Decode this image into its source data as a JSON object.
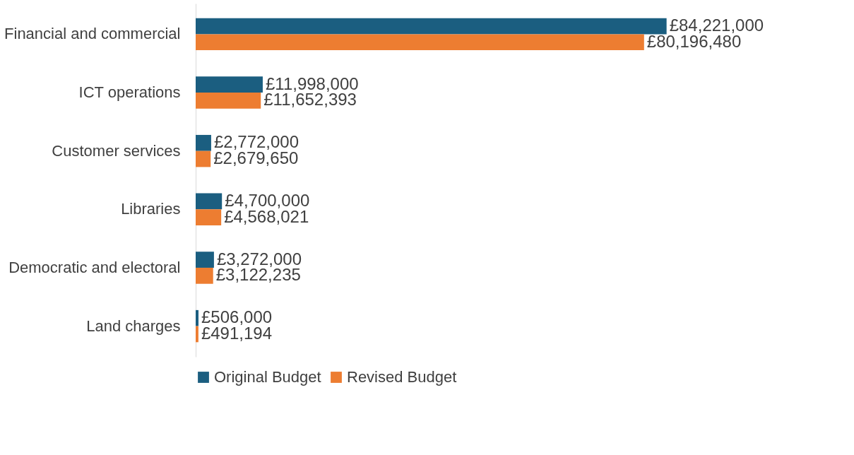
{
  "chart_data": {
    "type": "bar",
    "orientation": "horizontal",
    "legend": "bottom",
    "grid": false,
    "categories": [
      "Financial and commercial",
      "ICT operations",
      "Customer services",
      "Libraries",
      "Democratic and electoral",
      "Land charges"
    ],
    "series": [
      {
        "name": "Original Budget",
        "color": "#1b5e80",
        "values": [
          84221000,
          11998000,
          2772000,
          4700000,
          3272000,
          506000
        ],
        "value_labels": [
          "£84,221,000",
          "£11,998,000",
          "£2,772,000",
          "£4,700,000",
          "£3,272,000",
          "£506,000"
        ]
      },
      {
        "name": "Revised Budget",
        "color": "#ed7d31",
        "values": [
          80196480,
          11652393,
          2679650,
          4568021,
          3122235,
          491194
        ],
        "value_labels": [
          "£80,196,480",
          "£11,652,393",
          "£2,679,650",
          "£4,568,021",
          "£3,122,235",
          "£491,194"
        ]
      }
    ]
  }
}
